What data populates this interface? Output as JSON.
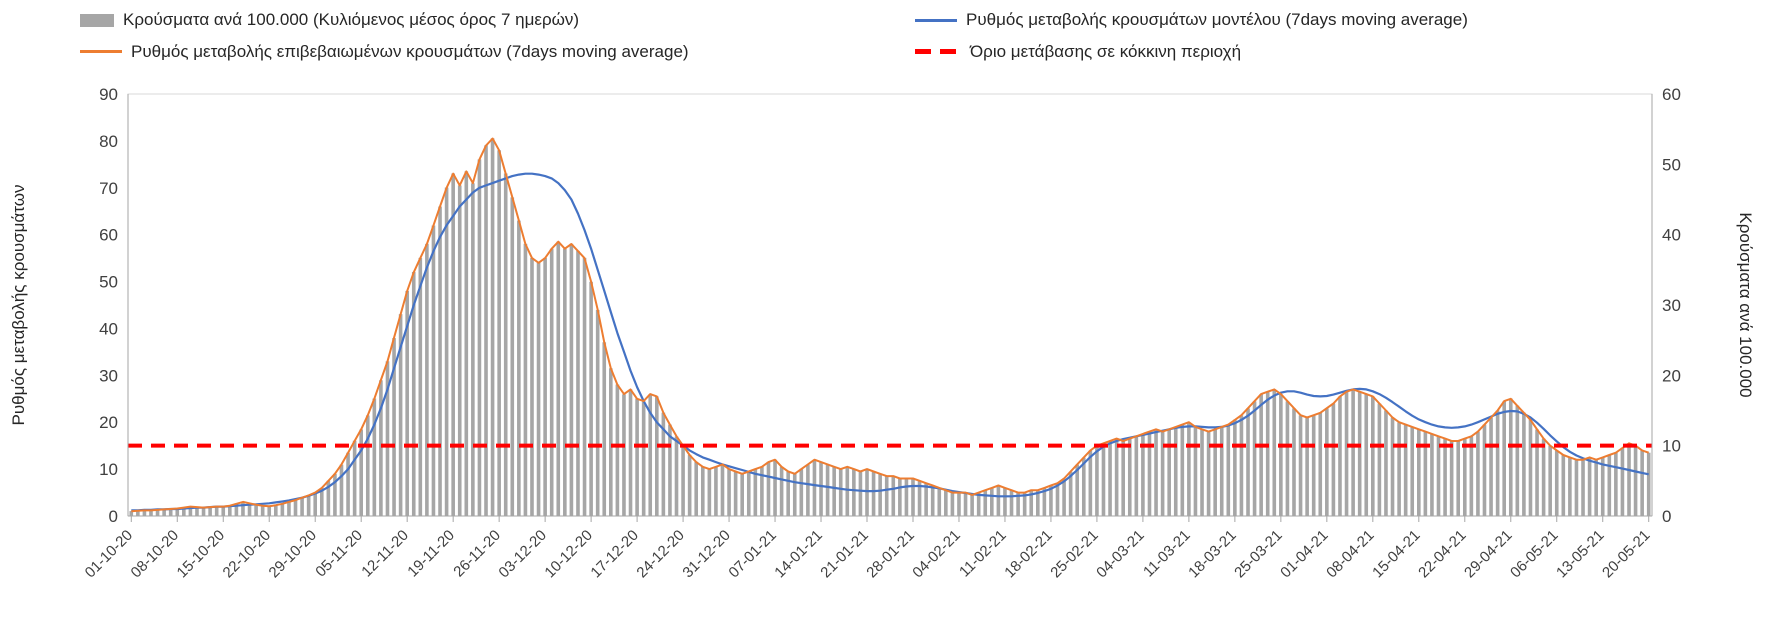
{
  "chart_data": {
    "type": "combo-bar-line",
    "title": "",
    "x_tick_labels": [
      "01-10-20",
      "08-10-20",
      "15-10-20",
      "22-10-20",
      "29-10-20",
      "05-11-20",
      "12-11-20",
      "19-11-20",
      "26-11-20",
      "03-12-20",
      "10-12-20",
      "17-12-20",
      "24-12-20",
      "31-12-20",
      "07-01-21",
      "14-01-21",
      "21-01-21",
      "28-01-21",
      "04-02-21",
      "11-02-21",
      "18-02-21",
      "25-02-21",
      "04-03-21",
      "11-03-21",
      "18-03-21",
      "25-03-21",
      "01-04-21",
      "08-04-21",
      "15-04-21",
      "22-04-21",
      "29-04-21",
      "06-05-21",
      "13-05-21",
      "20-05-21"
    ],
    "x_tick_every": 7,
    "x_daily_count": 232,
    "left_axis": {
      "label": "Ρυθμός μεταβολής κρουσμάτων",
      "min": 0,
      "max": 90,
      "step": 10,
      "ticks": [
        0,
        10,
        20,
        30,
        40,
        50,
        60,
        70,
        80,
        90
      ]
    },
    "right_axis": {
      "label": "Κρούσματα ανά 100.000",
      "min": 0,
      "max": 60,
      "step": 10,
      "ticks": [
        0,
        10,
        20,
        30,
        40,
        50,
        60
      ]
    },
    "threshold": {
      "label": "Όριο μετάβασης σε κόκκινη περιοχή",
      "value_left_axis": 15,
      "color": "#ff0000",
      "style": "dashed"
    },
    "series": [
      {
        "name": "Κρούσματα ανά 100.000 (Κυλιόμενος μέσος όρος 7 ημερών)",
        "type": "bar",
        "axis": "right",
        "color": "#a6a6a6",
        "values": [
          0.7,
          0.7,
          0.8,
          0.8,
          0.9,
          0.9,
          1.0,
          1.1,
          1.2,
          1.4,
          1.3,
          1.2,
          1.3,
          1.3,
          1.3,
          1.5,
          1.8,
          2.0,
          1.8,
          1.6,
          1.5,
          1.4,
          1.5,
          1.7,
          2.0,
          2.3,
          2.6,
          3.0,
          3.3,
          4.0,
          5.0,
          6.0,
          7.3,
          9.0,
          10.7,
          12.3,
          14.3,
          16.7,
          19.3,
          22.0,
          25.3,
          28.7,
          32.0,
          34.7,
          36.7,
          38.7,
          41.3,
          44.0,
          46.7,
          48.7,
          47.0,
          49.0,
          47.3,
          50.7,
          52.7,
          53.7,
          52.0,
          48.7,
          45.3,
          42.0,
          38.7,
          36.7,
          36.0,
          36.7,
          38.0,
          39.0,
          38.0,
          38.7,
          37.7,
          36.7,
          33.3,
          29.3,
          24.7,
          21.0,
          18.7,
          17.3,
          18.0,
          16.7,
          16.3,
          17.3,
          17.0,
          14.7,
          13.0,
          11.3,
          10.0,
          8.7,
          7.7,
          7.0,
          6.7,
          7.0,
          7.3,
          6.7,
          6.3,
          6.0,
          6.3,
          6.7,
          7.0,
          7.7,
          8.0,
          7.0,
          6.3,
          6.0,
          6.7,
          7.3,
          8.0,
          7.7,
          7.3,
          7.0,
          6.7,
          7.0,
          6.7,
          6.3,
          6.7,
          6.3,
          6.0,
          5.7,
          5.7,
          5.3,
          5.3,
          5.3,
          5.0,
          4.7,
          4.3,
          4.0,
          3.7,
          3.3,
          3.3,
          3.3,
          3.0,
          3.3,
          3.7,
          4.0,
          4.3,
          4.0,
          3.7,
          3.3,
          3.3,
          3.7,
          3.7,
          4.0,
          4.3,
          4.7,
          5.3,
          6.3,
          7.3,
          8.3,
          9.3,
          10.0,
          10.3,
          10.7,
          11.0,
          10.7,
          11.0,
          11.3,
          11.7,
          12.0,
          12.3,
          12.0,
          12.3,
          12.7,
          13.0,
          13.3,
          12.7,
          12.3,
          12.0,
          12.3,
          12.7,
          13.0,
          13.7,
          14.3,
          15.3,
          16.3,
          17.3,
          17.7,
          18.0,
          17.3,
          16.3,
          15.3,
          14.3,
          14.0,
          14.3,
          14.7,
          15.3,
          16.0,
          17.0,
          17.7,
          18.0,
          17.7,
          17.3,
          17.0,
          16.0,
          15.0,
          14.0,
          13.3,
          13.0,
          12.7,
          12.3,
          12.0,
          11.7,
          11.3,
          11.0,
          10.7,
          10.7,
          11.0,
          11.3,
          12.0,
          13.0,
          14.0,
          15.0,
          16.3,
          16.7,
          15.7,
          14.7,
          13.7,
          12.3,
          11.0,
          10.0,
          9.3,
          8.7,
          8.3,
          8.0,
          8.0,
          8.3,
          8.0,
          8.3,
          8.7,
          9.0,
          9.7,
          10.3,
          10.0,
          9.3,
          9.0
        ]
      },
      {
        "name": "Ρυθμός μεταβολής κρουσμάτων μοντέλου (7days moving average)",
        "type": "line",
        "axis": "left",
        "color": "#4472c4",
        "values": [
          1.2,
          1.2,
          1.3,
          1.3,
          1.4,
          1.4,
          1.5,
          1.5,
          1.6,
          1.7,
          1.8,
          1.8,
          1.9,
          2.0,
          2.0,
          2.1,
          2.2,
          2.3,
          2.4,
          2.5,
          2.6,
          2.7,
          2.9,
          3.1,
          3.3,
          3.6,
          3.9,
          4.3,
          4.8,
          5.4,
          6.2,
          7.2,
          8.5,
          10.0,
          12.0,
          14.0,
          16.5,
          19.5,
          23.0,
          27.0,
          31.5,
          36.0,
          40.5,
          45.0,
          49.0,
          53.0,
          56.5,
          59.5,
          62.0,
          64.0,
          66.0,
          67.5,
          69.0,
          70.0,
          70.5,
          71.0,
          71.5,
          72.0,
          72.5,
          72.8,
          73.0,
          73.0,
          72.8,
          72.5,
          72.0,
          71.0,
          69.5,
          67.5,
          64.5,
          61.0,
          57.0,
          52.5,
          48.0,
          43.5,
          39.0,
          35.0,
          31.0,
          27.5,
          24.5,
          22.0,
          20.0,
          18.5,
          17.0,
          16.0,
          15.0,
          14.0,
          13.2,
          12.5,
          12.0,
          11.5,
          11.0,
          10.6,
          10.2,
          9.8,
          9.4,
          9.0,
          8.7,
          8.4,
          8.1,
          7.8,
          7.5,
          7.2,
          7.0,
          6.8,
          6.6,
          6.4,
          6.2,
          6.0,
          5.8,
          5.6,
          5.5,
          5.4,
          5.3,
          5.3,
          5.4,
          5.6,
          5.8,
          6.1,
          6.3,
          6.4,
          6.4,
          6.3,
          6.1,
          5.9,
          5.6,
          5.3,
          5.1,
          4.9,
          4.7,
          4.5,
          4.4,
          4.3,
          4.2,
          4.2,
          4.2,
          4.3,
          4.4,
          4.6,
          4.9,
          5.3,
          5.8,
          6.5,
          7.4,
          8.5,
          9.8,
          11.2,
          12.6,
          13.8,
          14.8,
          15.5,
          16.0,
          16.4,
          16.7,
          17.0,
          17.3,
          17.6,
          17.9,
          18.2,
          18.5,
          18.8,
          19.0,
          19.1,
          19.1,
          19.0,
          18.9,
          18.9,
          19.0,
          19.3,
          19.8,
          20.5,
          21.4,
          22.5,
          23.7,
          24.8,
          25.7,
          26.3,
          26.6,
          26.6,
          26.3,
          25.9,
          25.6,
          25.5,
          25.6,
          25.9,
          26.3,
          26.7,
          27.0,
          27.1,
          27.0,
          26.6,
          26.0,
          25.2,
          24.3,
          23.3,
          22.3,
          21.4,
          20.6,
          20.0,
          19.5,
          19.1,
          18.9,
          18.8,
          18.9,
          19.1,
          19.5,
          20.0,
          20.6,
          21.2,
          21.8,
          22.2,
          22.4,
          22.3,
          21.8,
          21.0,
          19.9,
          18.6,
          17.2,
          15.9,
          14.7,
          13.7,
          12.9,
          12.3,
          11.8,
          11.4,
          11.0,
          10.7,
          10.4,
          10.1,
          9.8,
          9.5,
          9.2,
          8.9
        ]
      },
      {
        "name": "Ρυθμός μεταβολής επιβεβαιωμένων κρουσμάτων (7days moving average)",
        "type": "line",
        "axis": "left",
        "color": "#ed7d31",
        "values": [
          1.0,
          1.1,
          1.2,
          1.2,
          1.3,
          1.4,
          1.5,
          1.6,
          1.8,
          2.0,
          1.9,
          1.8,
          1.9,
          2.0,
          2.0,
          2.2,
          2.6,
          3.0,
          2.7,
          2.4,
          2.2,
          2.1,
          2.3,
          2.6,
          3.0,
          3.4,
          3.9,
          4.4,
          5.0,
          6.0,
          7.5,
          9.0,
          11.0,
          13.5,
          16.0,
          18.5,
          21.5,
          25.0,
          29.0,
          33.0,
          38.0,
          43.0,
          48.0,
          52.0,
          55.0,
          58.0,
          62.0,
          66.0,
          70.0,
          73.0,
          70.5,
          73.5,
          71.0,
          76.0,
          79.0,
          80.5,
          78.0,
          73.0,
          68.0,
          63.0,
          58.0,
          55.0,
          54.0,
          55.0,
          57.0,
          58.5,
          57.0,
          58.0,
          56.5,
          55.0,
          50.0,
          44.0,
          37.0,
          31.5,
          28.0,
          26.0,
          27.0,
          25.0,
          24.5,
          26.0,
          25.5,
          22.0,
          19.5,
          17.0,
          15.0,
          13.0,
          11.5,
          10.5,
          10.0,
          10.5,
          11.0,
          10.0,
          9.5,
          9.0,
          9.5,
          10.0,
          10.5,
          11.5,
          12.0,
          10.5,
          9.5,
          9.0,
          10.0,
          11.0,
          12.0,
          11.5,
          11.0,
          10.5,
          10.0,
          10.5,
          10.0,
          9.5,
          10.0,
          9.5,
          9.0,
          8.5,
          8.5,
          8.0,
          8.0,
          8.0,
          7.5,
          7.0,
          6.5,
          6.0,
          5.5,
          5.0,
          5.0,
          5.0,
          4.5,
          5.0,
          5.5,
          6.0,
          6.5,
          6.0,
          5.5,
          5.0,
          5.0,
          5.5,
          5.5,
          6.0,
          6.5,
          7.0,
          8.0,
          9.5,
          11.0,
          12.5,
          14.0,
          15.0,
          15.5,
          16.0,
          16.5,
          16.0,
          16.5,
          17.0,
          17.5,
          18.0,
          18.5,
          18.0,
          18.5,
          19.0,
          19.5,
          20.0,
          19.0,
          18.5,
          18.0,
          18.5,
          19.0,
          19.5,
          20.5,
          21.5,
          23.0,
          24.5,
          26.0,
          26.5,
          27.0,
          26.0,
          24.5,
          23.0,
          21.5,
          21.0,
          21.5,
          22.0,
          23.0,
          24.0,
          25.5,
          26.5,
          27.0,
          26.5,
          26.0,
          25.5,
          24.0,
          22.5,
          21.0,
          20.0,
          19.5,
          19.0,
          18.5,
          18.0,
          17.5,
          17.0,
          16.5,
          16.0,
          16.0,
          16.5,
          17.0,
          18.0,
          19.5,
          21.0,
          22.5,
          24.5,
          25.0,
          23.5,
          22.0,
          20.5,
          18.5,
          16.5,
          15.0,
          14.0,
          13.0,
          12.5,
          12.0,
          12.0,
          12.5,
          12.0,
          12.5,
          13.0,
          13.5,
          14.5,
          15.5,
          15.0,
          14.0,
          13.5
        ]
      }
    ]
  }
}
